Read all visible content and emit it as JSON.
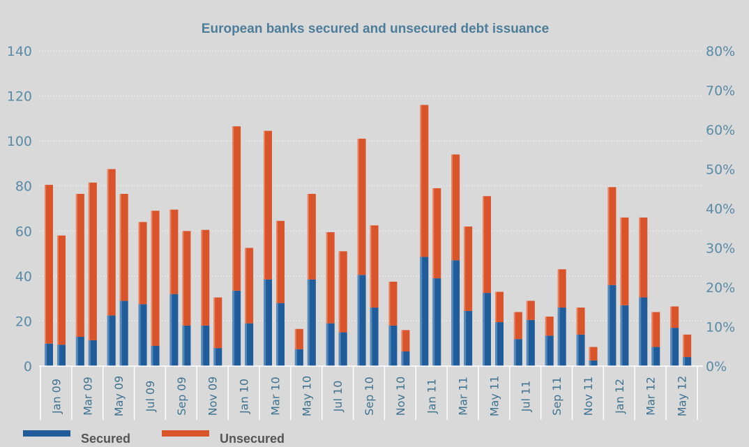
{
  "chart_data": {
    "type": "bar",
    "stacked": true,
    "title": "European banks secured and unsecured debt issuance",
    "xlabel": "",
    "ylabel": "",
    "ylim": [
      0,
      140
    ],
    "y_ticks": [
      0,
      20,
      40,
      60,
      80,
      100,
      120,
      140
    ],
    "y2_ticks": [
      "0%",
      "10%",
      "20%",
      "30%",
      "40%",
      "50%",
      "60%",
      "70%",
      "80%"
    ],
    "grid": true,
    "legend_position": "bottom-left",
    "x_tick_labels": [
      "Jan 09",
      "Mar 09",
      "May 09",
      "Jul 09",
      "Sep 09",
      "Nov 09",
      "Jan 10",
      "Mar 10",
      "May 10",
      "Jul 10",
      "Sep 10",
      "Nov 10",
      "Jan 11",
      "Mar 11",
      "May 11",
      "Jul 11",
      "Sep 11",
      "Nov 11",
      "Jan 12",
      "Mar 12",
      "May 12"
    ],
    "categories": [
      "Jan 09",
      "Feb 09",
      "Mar 09",
      "Apr 09",
      "May 09",
      "Jun 09",
      "Jul 09",
      "Aug 09",
      "Sep 09",
      "Oct 09",
      "Nov 09",
      "Dec 09",
      "Jan 10",
      "Feb 10",
      "Mar 10",
      "Apr 10",
      "May 10",
      "Jun 10",
      "Jul 10",
      "Aug 10",
      "Sep 10",
      "Oct 10",
      "Nov 10",
      "Dec 10",
      "Jan 11",
      "Feb 11",
      "Mar 11",
      "Apr 11",
      "May 11",
      "Jun 11",
      "Jul 11",
      "Aug 11",
      "Sep 11",
      "Oct 11",
      "Nov 11",
      "Dec 11",
      "Jan 12",
      "Feb 12",
      "Mar 12",
      "Apr 12",
      "May 12",
      "Jun 12"
    ],
    "series": [
      {
        "name": "Secured",
        "color": "#1f5c99",
        "values": [
          10,
          9.5,
          13,
          11.5,
          22.5,
          29,
          27.5,
          9,
          32,
          18,
          18,
          8,
          33.5,
          19,
          38.5,
          28,
          7.5,
          38.5,
          19,
          15,
          40.5,
          26,
          18,
          6.5,
          48.5,
          39,
          47,
          24.5,
          32.5,
          19.5,
          12,
          20.5,
          13.5,
          26,
          14,
          2.5,
          36,
          27,
          30.5,
          8.5,
          17,
          4
        ]
      },
      {
        "name": "Unsecured",
        "color": "#d9532b",
        "values": [
          70.5,
          48.5,
          63.5,
          70,
          65,
          47.5,
          36.5,
          60,
          37.5,
          42,
          42.5,
          22.5,
          73,
          33.5,
          66,
          36.5,
          9,
          38,
          40.5,
          36,
          60.5,
          36.5,
          19.5,
          9.5,
          67.5,
          40,
          47,
          37.5,
          43,
          13.5,
          12,
          8.5,
          8.5,
          17,
          12,
          6,
          43.5,
          39,
          35.5,
          15.5,
          9.5,
          10
        ]
      }
    ]
  }
}
